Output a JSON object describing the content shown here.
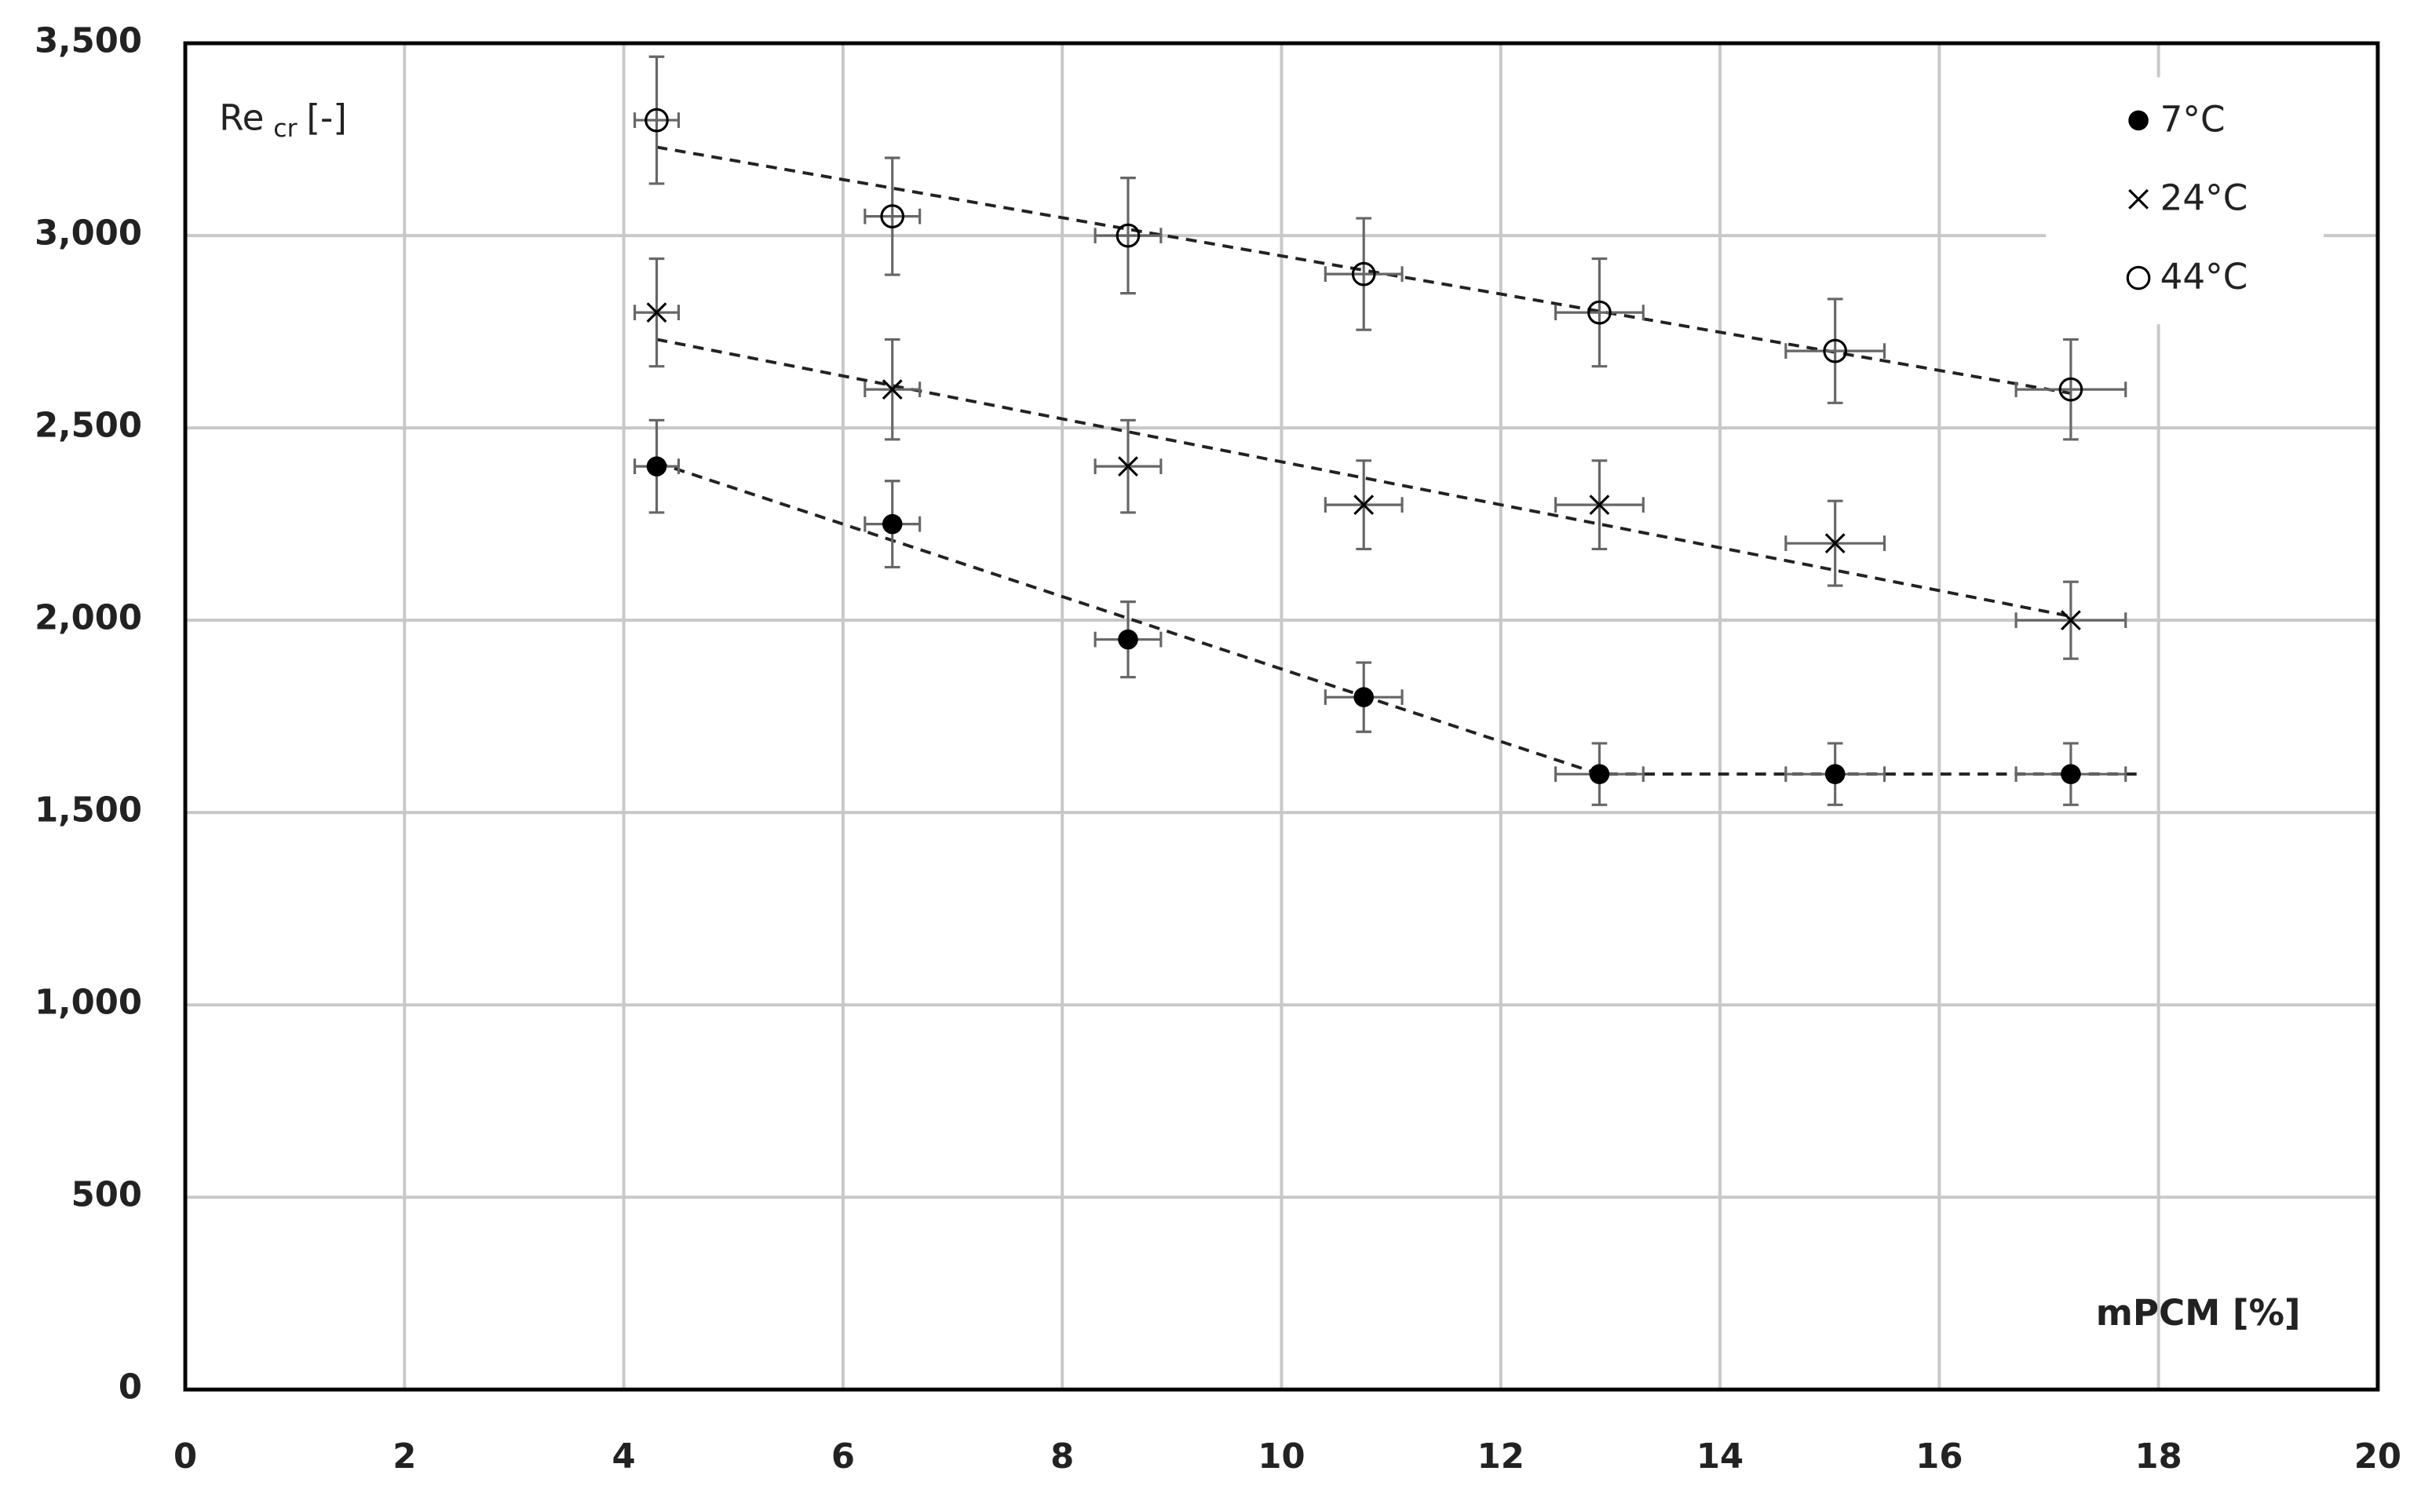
{
  "chart_data": {
    "type": "scatter",
    "ylabel": "Re",
    "ylabel_subscript": "cr",
    "ylabel_suffix": "[-]",
    "xlabel": "mPCM [%]",
    "x": [
      4.3,
      6.45,
      8.6,
      10.75,
      12.9,
      15.05,
      17.2
    ],
    "x_errors": [
      0.2,
      0.25,
      0.3,
      0.35,
      0.4,
      0.45,
      0.5
    ],
    "series": [
      {
        "name": "7°C",
        "marker": "filled-circle",
        "color": "#000000",
        "values": [
          2400,
          2250,
          1950,
          1800,
          1600,
          1600,
          1600
        ],
        "errors": [
          120,
          112,
          98,
          90,
          80,
          80,
          80
        ],
        "trend": {
          "x": [
            4.3,
            12.9,
            17.8
          ],
          "y": [
            2410,
            1600,
            1600
          ]
        }
      },
      {
        "name": "24°C",
        "marker": "cross",
        "color": "#000000",
        "values": [
          2800,
          2600,
          2400,
          2300,
          2300,
          2200,
          2000
        ],
        "errors": [
          140,
          130,
          120,
          115,
          115,
          110,
          100
        ],
        "trend": {
          "x": [
            4.3,
            17.2
          ],
          "y": [
            2730,
            2010
          ]
        }
      },
      {
        "name": "44°C",
        "marker": "open-circle",
        "color": "#000000",
        "values": [
          3300,
          3050,
          3000,
          2900,
          2800,
          2700,
          2600
        ],
        "errors": [
          165,
          152,
          150,
          145,
          140,
          135,
          130
        ],
        "trend": {
          "x": [
            4.3,
            17.2
          ],
          "y": [
            3230,
            2590
          ]
        }
      }
    ],
    "xlim": [
      0,
      20
    ],
    "xticks": [
      0,
      2,
      4,
      6,
      8,
      10,
      12,
      14,
      16,
      18,
      20
    ],
    "ylim": [
      0,
      3500
    ],
    "yticks": [
      0,
      500,
      {
        "value": 1000,
        "label": "1,000"
      },
      {
        "value": 1500,
        "label": "1,500"
      },
      {
        "value": 2000,
        "label": "2,000"
      },
      {
        "value": 2500,
        "label": "2,500"
      },
      {
        "value": 3000,
        "label": "3,000"
      },
      {
        "value": 3500,
        "label": "3,500"
      }
    ],
    "grid": true,
    "legend": "upper-right"
  }
}
